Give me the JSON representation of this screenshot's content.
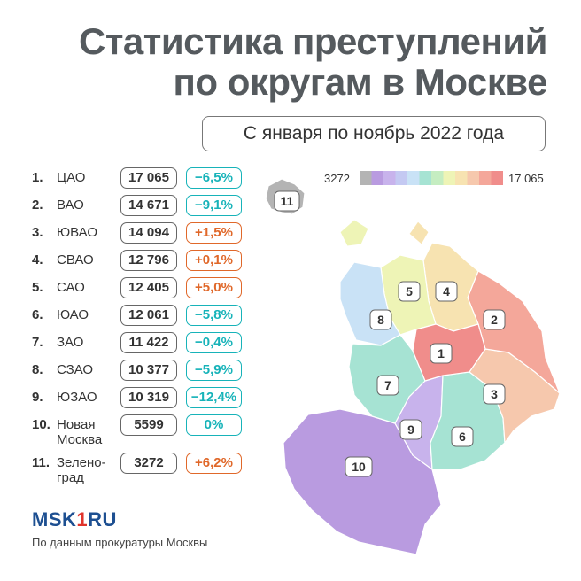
{
  "header": {
    "title_line1": "Статистика преступлений",
    "title_line2": "по округам в Москве",
    "period": "С января по ноябрь 2022 года"
  },
  "colors": {
    "negative": "#17b3b9",
    "positive": "#e0682a",
    "scale": [
      "#b4b4b4",
      "#b99be0",
      "#c8b3ec",
      "#c4c9f2",
      "#c9e2f6",
      "#a6e3d3",
      "#c5edc1",
      "#eef4b6",
      "#f7e3b1",
      "#f6c8ad",
      "#f4a79a",
      "#f08d8b"
    ]
  },
  "legend": {
    "min": "3272",
    "max": "17 065"
  },
  "districts": [
    {
      "rank": "1.",
      "name": "ЦАО",
      "crimes": "17 065",
      "change": "−6,5%",
      "sign": "neg"
    },
    {
      "rank": "2.",
      "name": "ВАО",
      "crimes": "14 671",
      "change": "−9,1%",
      "sign": "neg"
    },
    {
      "rank": "3.",
      "name": "ЮВАО",
      "crimes": "14 094",
      "change": "+1,5%",
      "sign": "pos"
    },
    {
      "rank": "4.",
      "name": "СВАО",
      "crimes": "12 796",
      "change": "+0,1%",
      "sign": "pos"
    },
    {
      "rank": "5.",
      "name": "САО",
      "crimes": "12 405",
      "change": "+5,0%",
      "sign": "pos"
    },
    {
      "rank": "6.",
      "name": "ЮАО",
      "crimes": "12 061",
      "change": "−5,8%",
      "sign": "neg"
    },
    {
      "rank": "7.",
      "name": "ЗАО",
      "crimes": "11 422",
      "change": "−0,4%",
      "sign": "neg"
    },
    {
      "rank": "8.",
      "name": "СЗАО",
      "crimes": "10 377",
      "change": "−5,9%",
      "sign": "neg"
    },
    {
      "rank": "9.",
      "name": "ЮЗАО",
      "crimes": "10 319",
      "change": "−12,4%",
      "sign": "neg"
    },
    {
      "rank": "10.",
      "name": "Новая Москва",
      "crimes": "5599",
      "change": "0%",
      "sign": "neg"
    },
    {
      "rank": "11.",
      "name": "Зелено-град",
      "crimes": "3272",
      "change": "+6,2%",
      "sign": "pos"
    }
  ],
  "map_labels": [
    "1",
    "2",
    "3",
    "4",
    "5",
    "6",
    "7",
    "8",
    "9",
    "10",
    "11"
  ],
  "footer": {
    "logo_part1": "MSK",
    "logo_part2": "1",
    "logo_part3": "RU",
    "source": "По данным прокуратуры Москвы"
  }
}
